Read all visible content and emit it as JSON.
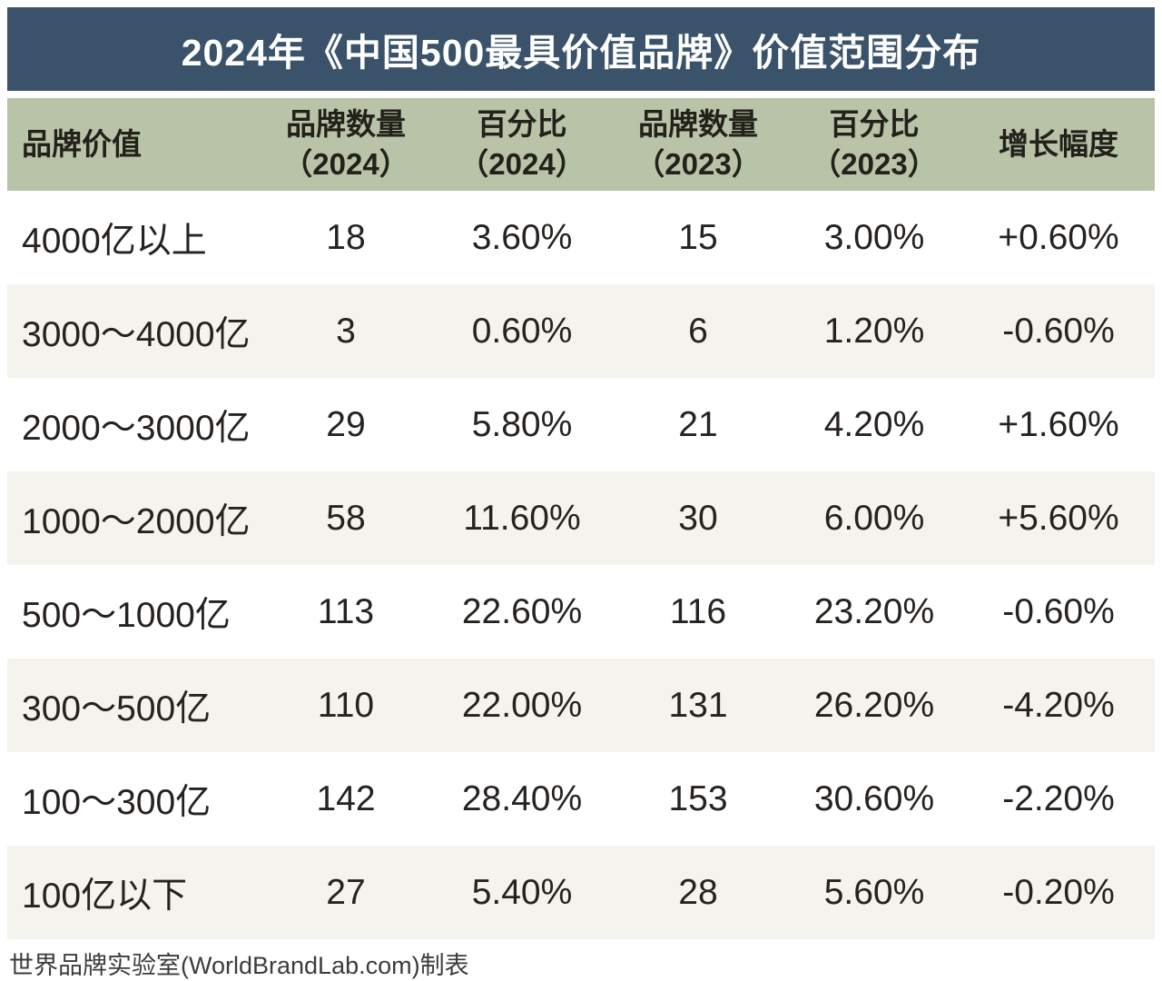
{
  "title": "2024年《中国500最具价值品牌》价值范围分布",
  "colors": {
    "title_bg": "#3a536b",
    "header_bg": "#b8c3a8",
    "row_alt_bg": "#f4f3ee",
    "text": "#26221f"
  },
  "table": {
    "columns": [
      {
        "line1": "品牌价值",
        "line2": ""
      },
      {
        "line1": "品牌数量",
        "line2": "（2024）"
      },
      {
        "line1": "百分比",
        "line2": "（2024）"
      },
      {
        "line1": "品牌数量",
        "line2": "（2023）"
      },
      {
        "line1": "百分比",
        "line2": "（2023）"
      },
      {
        "line1": "增长幅度",
        "line2": ""
      }
    ],
    "rows": [
      {
        "label": "4000亿以上",
        "count_2024": "18",
        "pct_2024": "3.60%",
        "count_2023": "15",
        "pct_2023": "3.00%",
        "change": "+0.60%"
      },
      {
        "label": "3000～4000亿",
        "count_2024": "3",
        "pct_2024": "0.60%",
        "count_2023": "6",
        "pct_2023": "1.20%",
        "change": "-0.60%"
      },
      {
        "label": "2000～3000亿",
        "count_2024": "29",
        "pct_2024": "5.80%",
        "count_2023": "21",
        "pct_2023": "4.20%",
        "change": "+1.60%"
      },
      {
        "label": "1000～2000亿",
        "count_2024": "58",
        "pct_2024": "11.60%",
        "count_2023": "30",
        "pct_2023": "6.00%",
        "change": "+5.60%"
      },
      {
        "label": "500～1000亿",
        "count_2024": "113",
        "pct_2024": "22.60%",
        "count_2023": "116",
        "pct_2023": "23.20%",
        "change": "-0.60%"
      },
      {
        "label": "300～500亿",
        "count_2024": "110",
        "pct_2024": "22.00%",
        "count_2023": "131",
        "pct_2023": "26.20%",
        "change": "-4.20%"
      },
      {
        "label": "100～300亿",
        "count_2024": "142",
        "pct_2024": "28.40%",
        "count_2023": "153",
        "pct_2023": "30.60%",
        "change": "-2.20%"
      },
      {
        "label": "100亿以下",
        "count_2024": "27",
        "pct_2024": "5.40%",
        "count_2023": "28",
        "pct_2023": "5.60%",
        "change": "-0.20%"
      }
    ]
  },
  "footer": "世界品牌实验室(WorldBrandLab.com)制表",
  "chart_data": {
    "type": "table",
    "title": "2024年《中国500最具价值品牌》价值范围分布",
    "columns": [
      "品牌价值",
      "品牌数量（2024）",
      "百分比（2024）",
      "品牌数量（2023）",
      "百分比（2023）",
      "增长幅度"
    ],
    "rows": [
      [
        "4000亿以上",
        18,
        "3.60%",
        15,
        "3.00%",
        "+0.60%"
      ],
      [
        "3000～4000亿",
        3,
        "0.60%",
        6,
        "1.20%",
        "-0.60%"
      ],
      [
        "2000～3000亿",
        29,
        "5.80%",
        21,
        "4.20%",
        "+1.60%"
      ],
      [
        "1000～2000亿",
        58,
        "11.60%",
        30,
        "6.00%",
        "+5.60%"
      ],
      [
        "500～1000亿",
        113,
        "22.60%",
        116,
        "23.20%",
        "-0.60%"
      ],
      [
        "300～500亿",
        110,
        "22.00%",
        131,
        "26.20%",
        "-4.20%"
      ],
      [
        "100～300亿",
        142,
        "28.40%",
        153,
        "30.60%",
        "-2.20%"
      ],
      [
        "100亿以下",
        27,
        "5.40%",
        28,
        "5.60%",
        "-0.20%"
      ]
    ],
    "source": "世界品牌实验室(WorldBrandLab.com)制表"
  }
}
